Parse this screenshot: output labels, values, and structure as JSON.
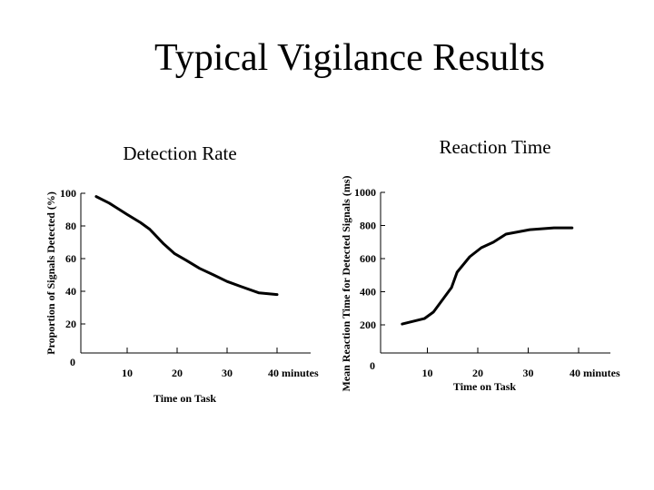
{
  "slide": {
    "title": "Typical Vigilance Results"
  },
  "chart_data": [
    {
      "type": "line",
      "title": "Detection Rate",
      "xlabel": "Time on Task",
      "ylabel": "Proportion of Signals Detected (%)",
      "x_ticks": [
        "10",
        "20",
        "30",
        "40 minutes"
      ],
      "x_tick_values": [
        10,
        20,
        30,
        40
      ],
      "y_ticks": [
        "0",
        "20",
        "40",
        "60",
        "80",
        "100"
      ],
      "y_tick_values": [
        0,
        20,
        40,
        60,
        80,
        100
      ],
      "xlim": [
        0,
        47
      ],
      "ylim": [
        0,
        100
      ],
      "grid": false,
      "color": "#000000",
      "x": [
        3.8,
        6.4,
        10,
        12.7,
        14.5,
        17.3,
        19.5,
        21.8,
        24.5,
        27.3,
        30,
        32.7,
        36.4,
        40
      ],
      "y": [
        98,
        94,
        87,
        82,
        78,
        69,
        63,
        59,
        54,
        50,
        46,
        43,
        39,
        38
      ]
    },
    {
      "type": "line",
      "title": "Reaction Time",
      "xlabel": "Time on Task",
      "ylabel": "Mean Reaction Time for Detected Signals (ms)",
      "x_ticks": [
        "10",
        "20",
        "30",
        "40 minutes"
      ],
      "x_tick_values": [
        10,
        20,
        30,
        40
      ],
      "y_ticks": [
        "0",
        "200",
        "400",
        "600",
        "800",
        "1000"
      ],
      "y_tick_values": [
        0,
        200,
        400,
        600,
        800,
        1000
      ],
      "xlim": [
        0,
        47
      ],
      "ylim": [
        0,
        1000
      ],
      "grid": false,
      "color": "#000000",
      "x": [
        5.0,
        9.4,
        11.2,
        14.8,
        15.9,
        18.4,
        20.7,
        23.1,
        25.6,
        30.3,
        35.1,
        38.7
      ],
      "y": [
        205,
        238,
        277,
        425,
        518,
        611,
        666,
        699,
        748,
        775,
        786,
        786
      ]
    }
  ]
}
